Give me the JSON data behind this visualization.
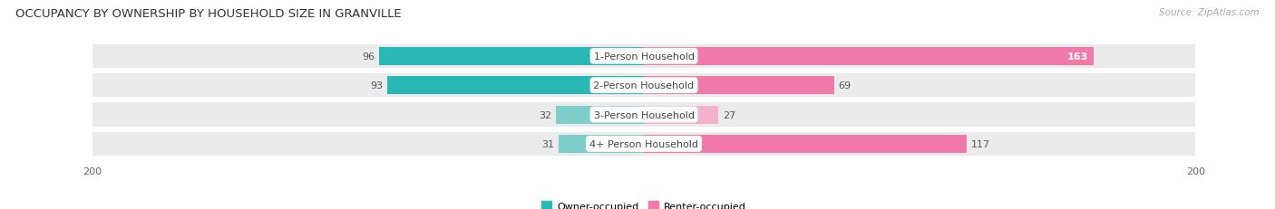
{
  "title": "OCCUPANCY BY OWNERSHIP BY HOUSEHOLD SIZE IN GRANVILLE",
  "source": "Source: ZipAtlas.com",
  "categories": [
    "1-Person Household",
    "2-Person Household",
    "3-Person Household",
    "4+ Person Household"
  ],
  "owner_values": [
    96,
    93,
    32,
    31
  ],
  "renter_values": [
    163,
    69,
    27,
    117
  ],
  "max_val": 200,
  "owner_colors": [
    "#2ab8b5",
    "#2ab8b5",
    "#7ecfcc",
    "#7ecfcc"
  ],
  "renter_colors": [
    "#f07aaa",
    "#f07aaa",
    "#f5b0cc",
    "#f079aa"
  ],
  "bar_bg_color": "#ebebeb",
  "row_sep_color": "#ffffff",
  "title_fontsize": 9.5,
  "label_fontsize": 8,
  "tick_fontsize": 8,
  "source_fontsize": 7.5,
  "background_color": "#ffffff",
  "legend_owner": "Owner-occupied",
  "legend_renter": "Renter-occupied",
  "legend_owner_color": "#2ab8b5",
  "legend_renter_color": "#f07aaa"
}
